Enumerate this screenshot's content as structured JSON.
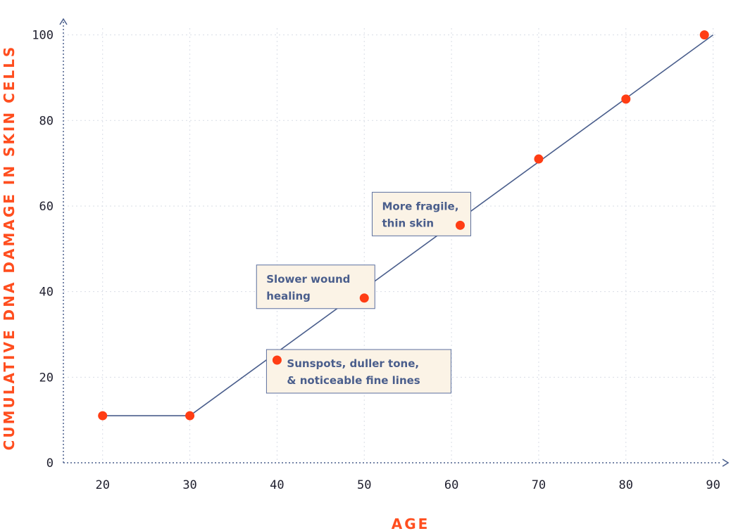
{
  "chart_data": {
    "type": "line",
    "xlabel": "AGE",
    "ylabel": "CUMULATIVE DNA DAMAGE IN SKIN CELLS",
    "xlim": [
      15.5,
      91
    ],
    "ylim": [
      0,
      101
    ],
    "x_ticks": [
      20,
      30,
      40,
      50,
      60,
      70,
      80,
      90
    ],
    "y_ticks": [
      0,
      20,
      40,
      60,
      80,
      100
    ],
    "grid": true,
    "line_points": {
      "x": [
        20,
        30,
        90
      ],
      "y": [
        11,
        11,
        100
      ]
    },
    "markers": {
      "x": [
        20,
        30,
        40,
        50,
        61,
        70,
        80,
        89
      ],
      "y": [
        11,
        11,
        24,
        38.5,
        55.5,
        71,
        85,
        100
      ]
    },
    "annotations": [
      {
        "lines": [
          "Sunspots, duller tone,",
          "& noticeable fine lines"
        ],
        "marker_x": 40,
        "marker_y": 24
      },
      {
        "lines": [
          "Slower wound",
          "healing"
        ],
        "marker_x": 50,
        "marker_y": 38.5
      },
      {
        "lines": [
          "More fragile,",
          "thin skin"
        ],
        "marker_x": 61,
        "marker_y": 55.5
      }
    ],
    "colors": {
      "line": "#4a5e8c",
      "marker": "#ff3d14",
      "axis_title": "#ff4e1f",
      "annotation_fill": "#fbf3e6"
    }
  }
}
